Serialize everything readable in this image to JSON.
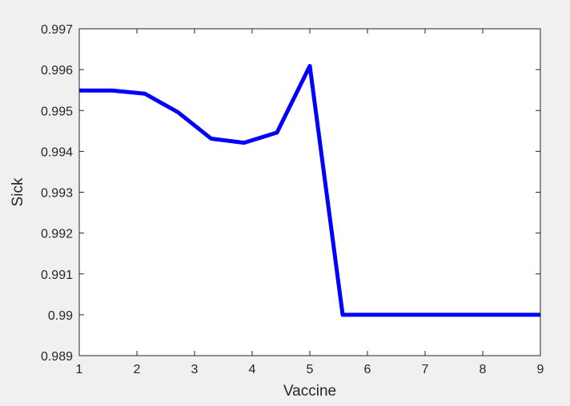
{
  "chart_data": {
    "type": "line",
    "title": "",
    "xlabel": "Vaccine",
    "ylabel": "Sick",
    "xlim": [
      1,
      9
    ],
    "ylim": [
      0.989,
      0.997
    ],
    "xticks": [
      1,
      2,
      3,
      4,
      5,
      6,
      7,
      8,
      9
    ],
    "xtick_labels": [
      "1",
      "2",
      "3",
      "4",
      "5",
      "6",
      "7",
      "8",
      "9"
    ],
    "yticks": [
      0.989,
      0.99,
      0.991,
      0.992,
      0.993,
      0.994,
      0.995,
      0.996,
      0.997
    ],
    "ytick_labels": [
      "0.989",
      "0.99",
      "0.991",
      "0.992",
      "0.993",
      "0.994",
      "0.995",
      "0.996",
      "0.997"
    ],
    "grid": false,
    "line_color": "#0000ff",
    "series": [
      {
        "x": [
          1.0,
          1.57,
          2.14,
          2.71,
          3.29,
          3.86,
          4.43,
          5.0,
          5.57,
          6.14,
          6.71,
          7.29,
          7.86,
          8.43,
          9.0
        ],
        "y": [
          0.99549,
          0.99549,
          0.99541,
          0.99496,
          0.99431,
          0.99421,
          0.99446,
          0.99609,
          0.99,
          0.99,
          0.99,
          0.99,
          0.99,
          0.99,
          0.99
        ]
      }
    ]
  }
}
